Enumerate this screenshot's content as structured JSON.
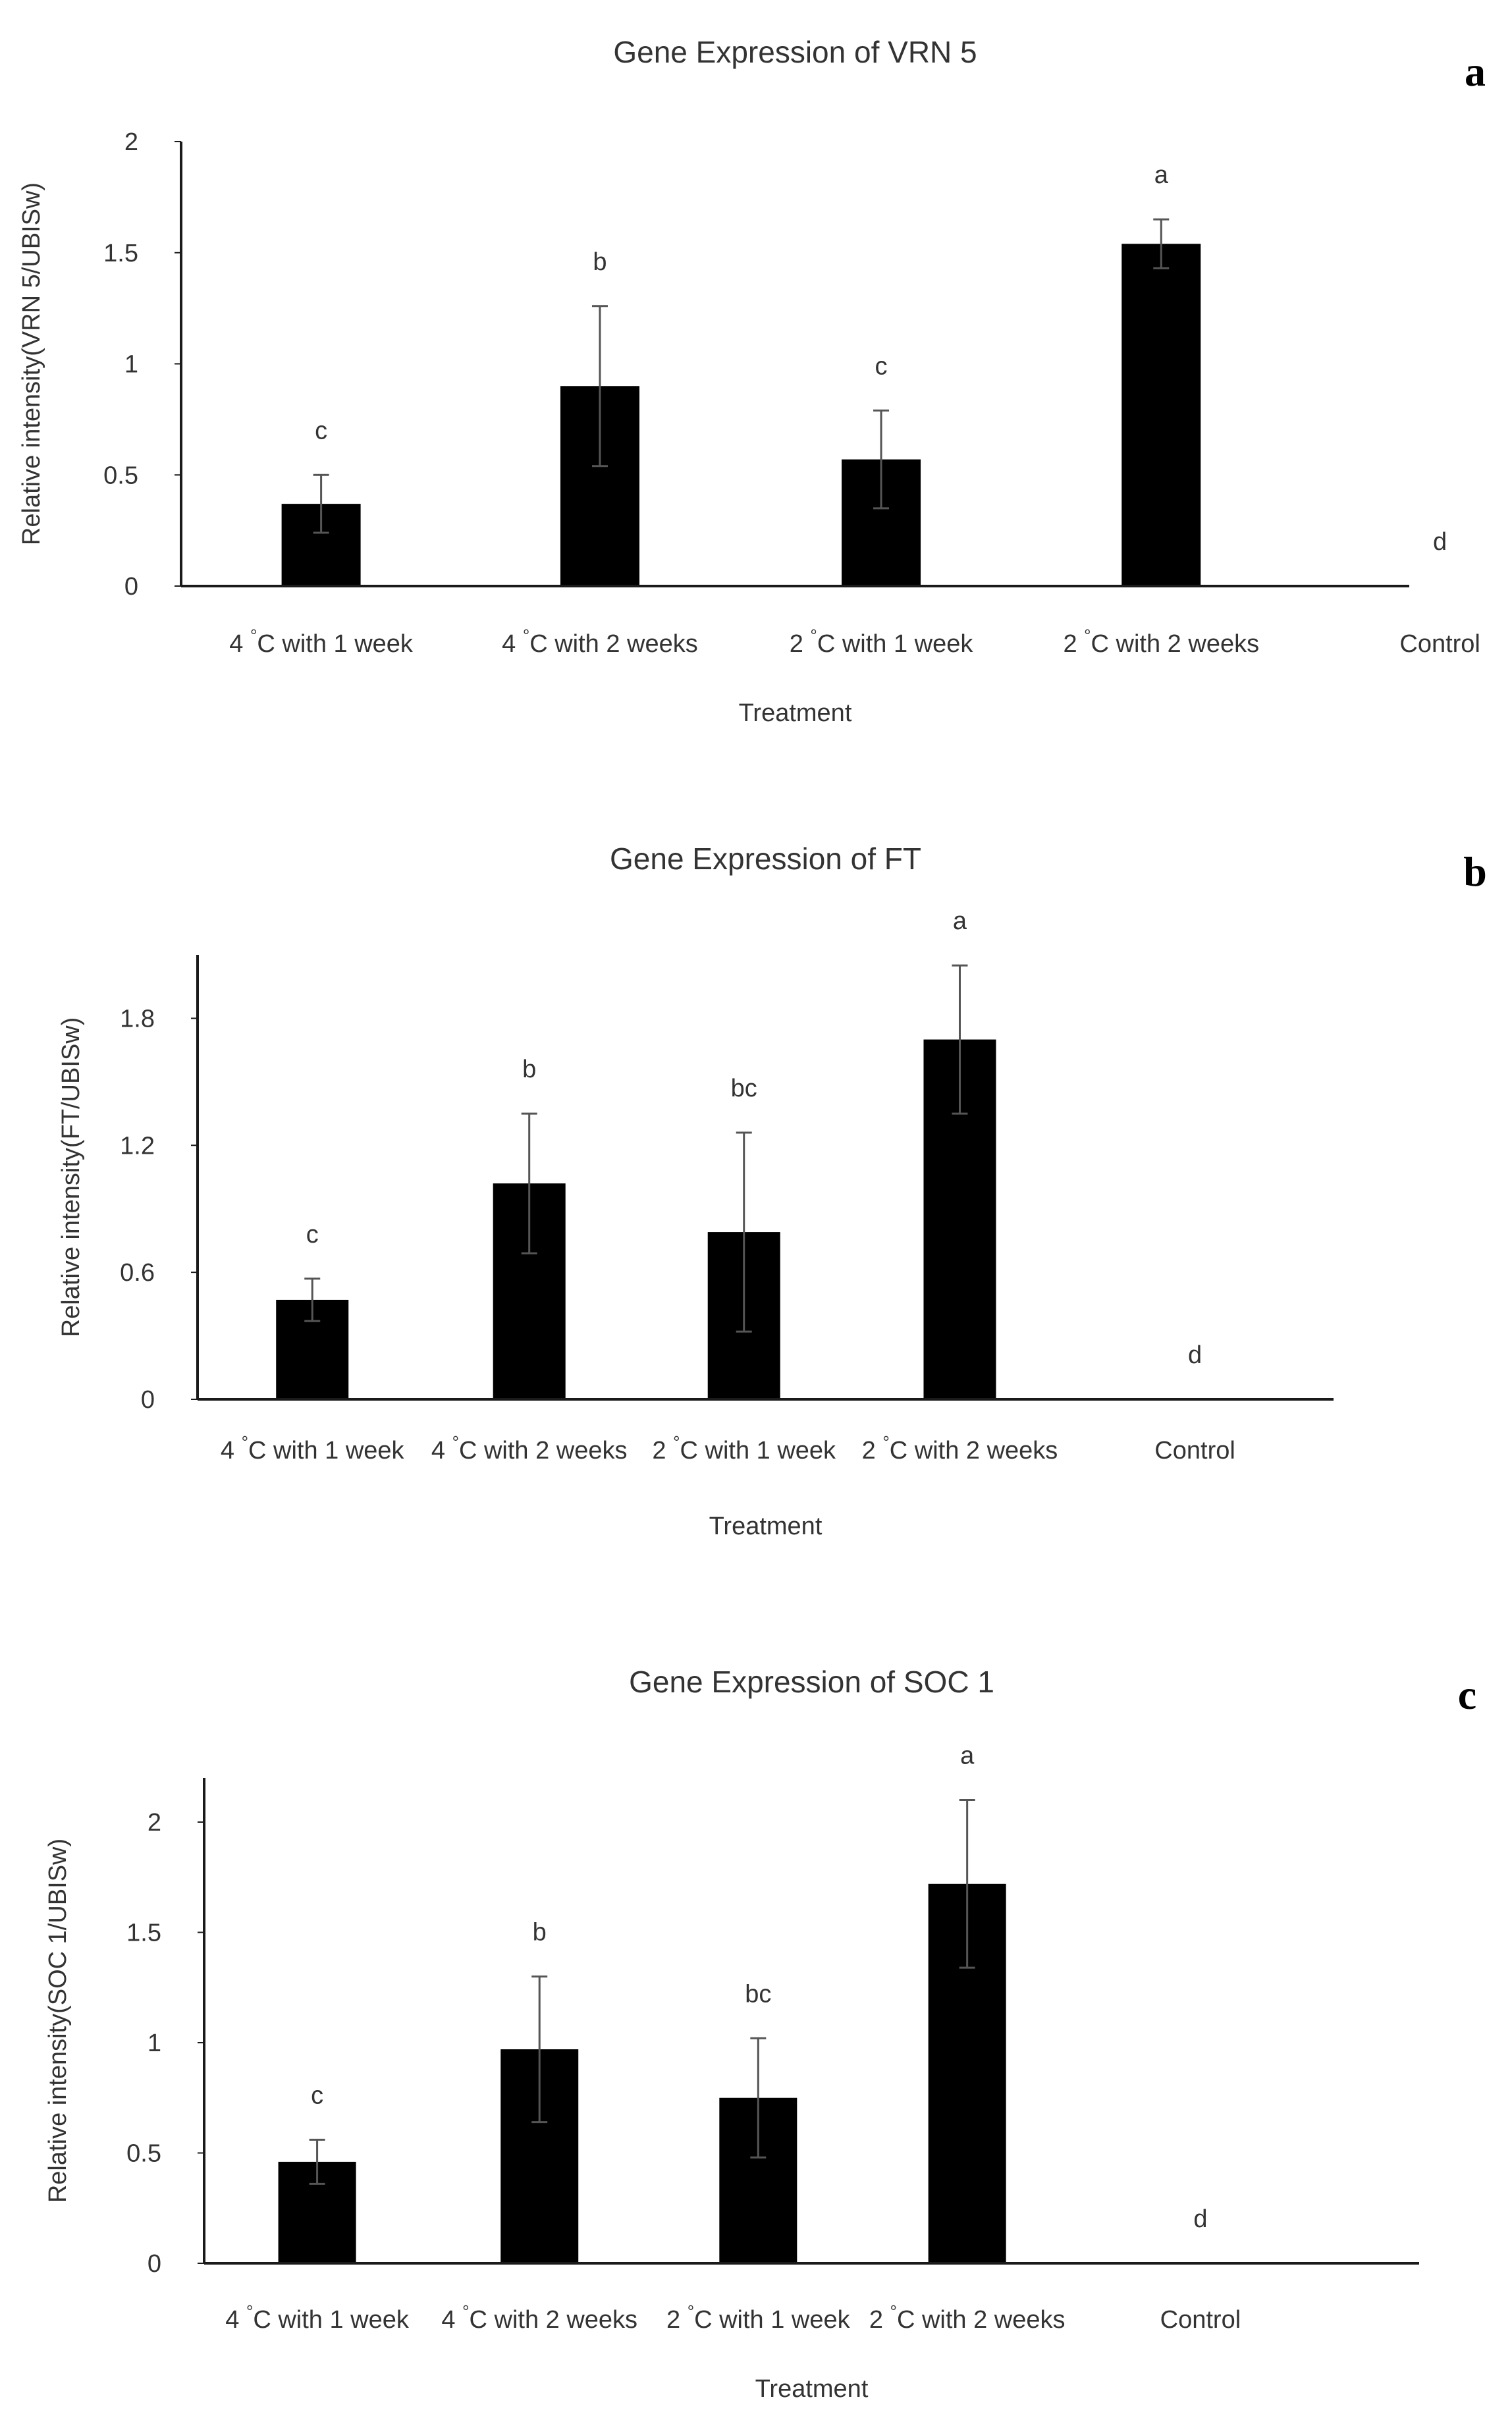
{
  "chart_data": [
    {
      "type": "bar",
      "panel_label": "a",
      "title": "Gene Expression of VRN 5",
      "xlabel": "Treatment",
      "ylabel": "Relative intensity(VRN 5/UBISw)",
      "ylim": [
        0,
        2
      ],
      "yticks": [
        0,
        0.5,
        1,
        1.5,
        2
      ],
      "ytick_labels": [
        "0",
        "0.5",
        "1",
        "1.5",
        "2"
      ],
      "categories": [
        "4 °C with 1 week",
        "4 °C with 2 weeks",
        "2 °C with 1 week",
        "2 °C with 2 weeks",
        "Control"
      ],
      "values": [
        0.37,
        0.9,
        0.57,
        1.54,
        0
      ],
      "errors": [
        0.13,
        0.36,
        0.22,
        0.11,
        0
      ],
      "significance": [
        "c",
        "b",
        "c",
        "a",
        "d"
      ],
      "grid": false
    },
    {
      "type": "bar",
      "panel_label": "b",
      "title": "Gene Expression of FT",
      "xlabel": "Treatment",
      "ylabel": "Relative intensity(FT/UBISw)",
      "ylim": [
        0,
        2.1
      ],
      "yticks": [
        0,
        0.6,
        1.2,
        1.8
      ],
      "ytick_labels": [
        "0",
        "0.6",
        "1.2",
        "1.8"
      ],
      "categories": [
        "4 °C with 1 week",
        "4 °C with 2 weeks",
        "2 °C with 1 week",
        "2 °C with 2 weeks",
        "Control"
      ],
      "values": [
        0.47,
        1.02,
        0.79,
        1.7,
        0
      ],
      "errors": [
        0.1,
        0.33,
        0.47,
        0.35,
        0
      ],
      "significance": [
        "c",
        "b",
        "bc",
        "a",
        "d"
      ],
      "grid": false
    },
    {
      "type": "bar",
      "panel_label": "c",
      "title": "Gene Expression of SOC 1",
      "xlabel": "Treatment",
      "ylabel": "Relative intensity(SOC 1/UBISw)",
      "ylim": [
        0,
        2.2
      ],
      "yticks": [
        0,
        0.5,
        1,
        1.5,
        2
      ],
      "ytick_labels": [
        "0",
        "0.5",
        "1",
        "1.5",
        "2"
      ],
      "categories": [
        "4 °C with 1 week",
        "4 °C with 2 weeks",
        "2 °C with 1 week",
        "2 °C with 2 weeks",
        "Control"
      ],
      "values": [
        0.46,
        0.97,
        0.75,
        1.72,
        0
      ],
      "errors": [
        0.1,
        0.33,
        0.27,
        0.38,
        0
      ],
      "significance": [
        "c",
        "b",
        "bc",
        "a",
        "d"
      ],
      "grid": false
    }
  ],
  "colors": {
    "bar": "#000000",
    "axis": "#1a1a1a",
    "text": "#333333",
    "error_bar": "#555555"
  }
}
